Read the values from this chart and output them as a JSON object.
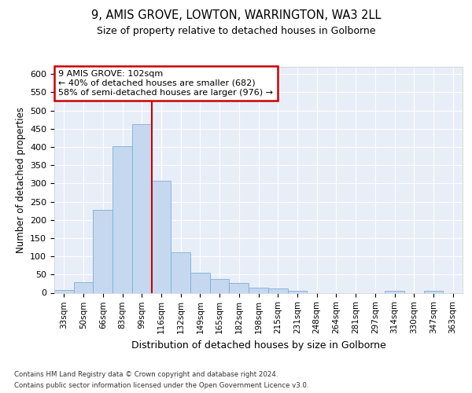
{
  "title1": "9, AMIS GROVE, LOWTON, WARRINGTON, WA3 2LL",
  "title2": "Size of property relative to detached houses in Golborne",
  "xlabel": "Distribution of detached houses by size in Golborne",
  "ylabel": "Number of detached properties",
  "bar_labels": [
    "33sqm",
    "50sqm",
    "66sqm",
    "83sqm",
    "99sqm",
    "116sqm",
    "132sqm",
    "149sqm",
    "165sqm",
    "182sqm",
    "198sqm",
    "215sqm",
    "231sqm",
    "248sqm",
    "264sqm",
    "281sqm",
    "297sqm",
    "314sqm",
    "330sqm",
    "347sqm",
    "363sqm"
  ],
  "bar_values": [
    7,
    30,
    228,
    402,
    463,
    307,
    110,
    55,
    38,
    28,
    14,
    12,
    5,
    0,
    0,
    0,
    0,
    5,
    0,
    5,
    0
  ],
  "bar_color": "#c5d8f0",
  "bar_edge_color": "#7aafd4",
  "property_line_x": 4.5,
  "annotation_line1": "9 AMIS GROVE: 102sqm",
  "annotation_line2": "← 40% of detached houses are smaller (682)",
  "annotation_line3": "58% of semi-detached houses are larger (976) →",
  "annotation_box_color": "#ffffff",
  "annotation_box_edge_color": "#cc0000",
  "vline_color": "#cc0000",
  "ylim": [
    0,
    620
  ],
  "yticks": [
    0,
    50,
    100,
    150,
    200,
    250,
    300,
    350,
    400,
    450,
    500,
    550,
    600
  ],
  "footnote1": "Contains HM Land Registry data © Crown copyright and database right 2024.",
  "footnote2": "Contains public sector information licensed under the Open Government Licence v3.0.",
  "fig_bg_color": "#ffffff",
  "plot_bg_color": "#e8eef8"
}
